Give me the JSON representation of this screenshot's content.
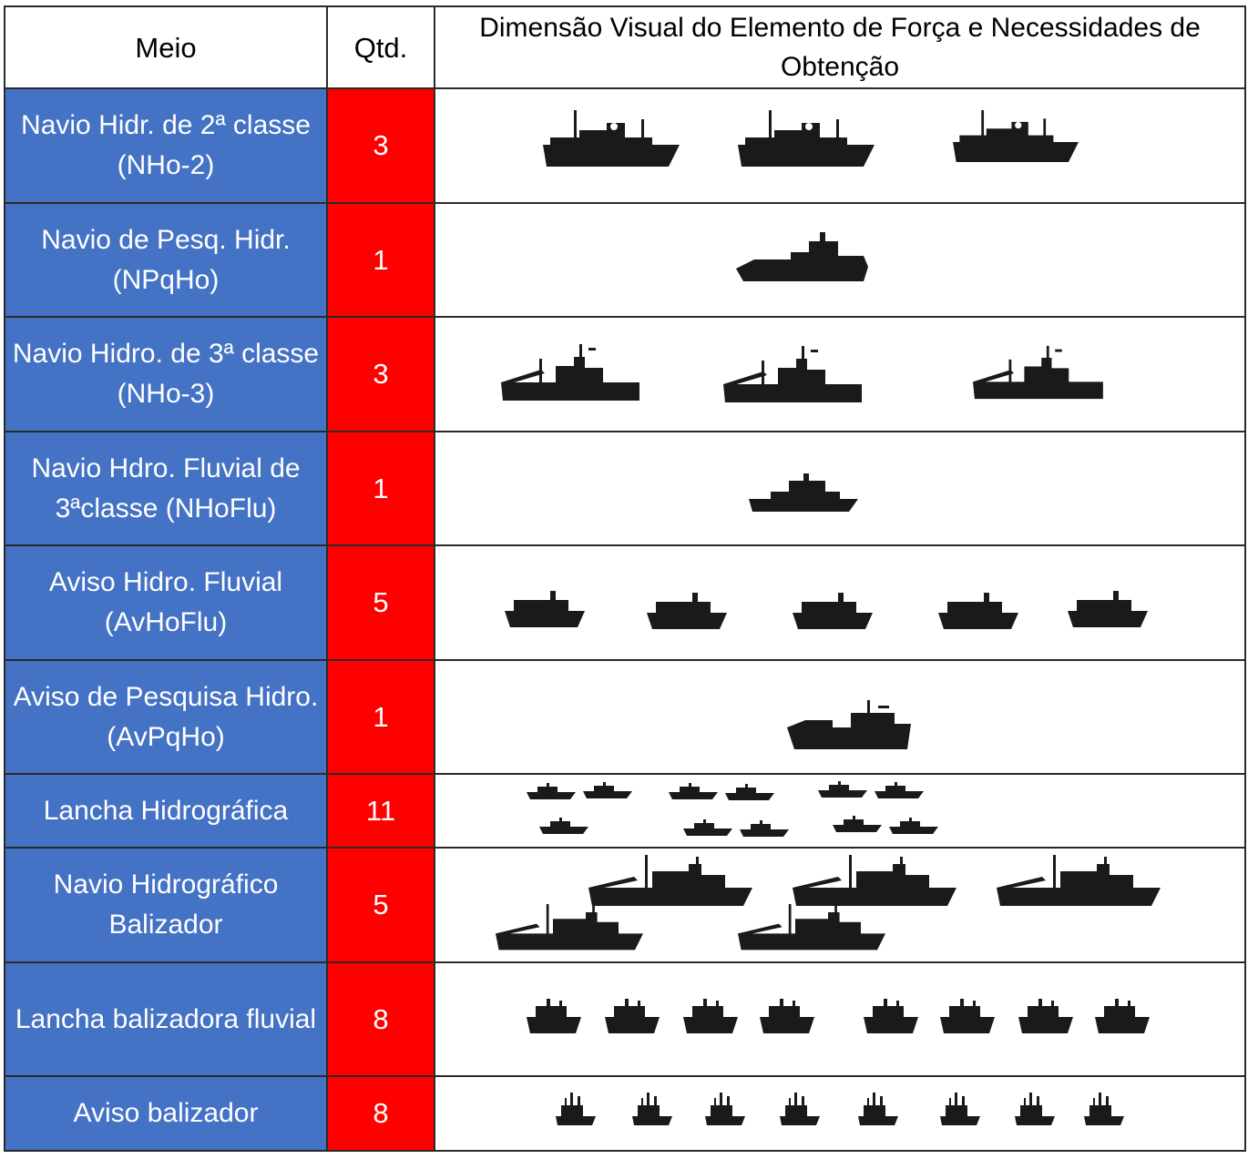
{
  "table": {
    "headers": {
      "meio": "Meio",
      "qtd": "Qtd.",
      "dimensao": "Dimensão Visual do Elemento de Força e Necessidades de Obtenção"
    },
    "rows": [
      {
        "meio": "Navio Hidr. de 2ª classe (NHo-2)",
        "qtd": "3",
        "ship_icon": "survey-ship-silhouette-icon",
        "count": 3
      },
      {
        "meio": "Navio de Pesq. Hidr. (NPqHo)",
        "qtd": "1",
        "ship_icon": "research-ship-silhouette-icon",
        "count": 1
      },
      {
        "meio": "Navio Hidro. de 3ª classe (NHo-3)",
        "qtd": "3",
        "ship_icon": "crane-ship-silhouette-icon",
        "count": 3
      },
      {
        "meio": "Navio Hdro. Fluvial de 3ªclasse (NHoFlu)",
        "qtd": "1",
        "ship_icon": "river-ship-silhouette-icon",
        "count": 1
      },
      {
        "meio": "Aviso Hidro. Fluvial (AvHoFlu)",
        "qtd": "5",
        "ship_icon": "river-tug-silhouette-icon",
        "count": 5
      },
      {
        "meio": "Aviso de Pesquisa Hidro. (AvPqHo)",
        "qtd": "1",
        "ship_icon": "research-boat-silhouette-icon",
        "count": 1
      },
      {
        "meio": "Lancha Hidrográfica",
        "qtd": "11",
        "ship_icon": "launch-silhouette-icon",
        "count": 11
      },
      {
        "meio": "Navio Hidrográfico Balizador",
        "qtd": "5",
        "ship_icon": "buoy-tender-silhouette-icon",
        "count": 5
      },
      {
        "meio": "Lancha balizadora fluvial",
        "qtd": "8",
        "ship_icon": "buoy-launch-silhouette-icon",
        "count": 8
      },
      {
        "meio": "Aviso balizador",
        "qtd": "8",
        "ship_icon": "small-tender-silhouette-icon",
        "count": 8
      }
    ]
  },
  "colors": {
    "meio_column": "#4472c4",
    "qtd_column": "#ff0000",
    "silhouette": "#1a1a1a"
  }
}
